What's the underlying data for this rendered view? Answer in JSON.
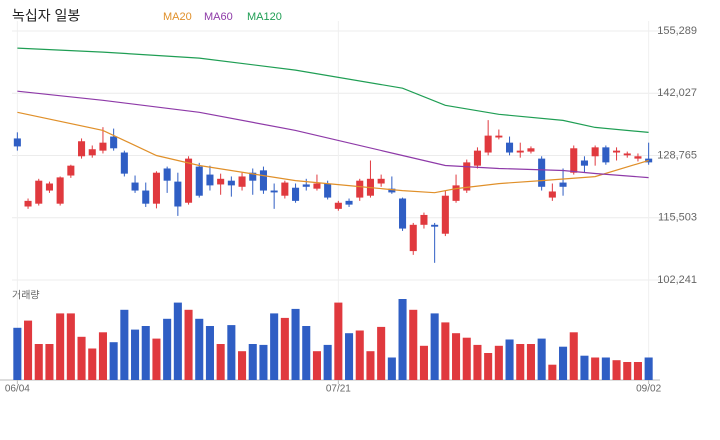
{
  "chart_data": {
    "type": "candlestick",
    "title": "녹십자 일봉",
    "volume_label": "거래량",
    "up_color": "#e0393e",
    "down_color": "#2f5ec4",
    "grid": true,
    "categories": [
      "06/04",
      null,
      null,
      null,
      null,
      null,
      null,
      null,
      null,
      null,
      null,
      null,
      null,
      null,
      null,
      null,
      null,
      null,
      null,
      null,
      null,
      null,
      null,
      null,
      null,
      null,
      null,
      null,
      null,
      null,
      "07/21",
      null,
      null,
      null,
      null,
      null,
      null,
      null,
      null,
      null,
      null,
      null,
      null,
      null,
      null,
      null,
      null,
      null,
      null,
      null,
      null,
      null,
      null,
      null,
      null,
      null,
      null,
      null,
      null,
      "09/02"
    ],
    "open": [
      132400,
      117900,
      118500,
      121300,
      118500,
      124500,
      128600,
      128800,
      129800,
      132800,
      129400,
      123000,
      121300,
      118500,
      126000,
      123200,
      118700,
      126400,
      124700,
      122600,
      123400,
      122100,
      125100,
      125600,
      121300,
      120200,
      121900,
      122600,
      121700,
      122800,
      117400,
      119100,
      119800,
      120200,
      122800,
      121700,
      119600,
      108400,
      114000,
      114000,
      112100,
      119100,
      121300,
      126600,
      129400,
      132600,
      131500,
      129400,
      129600,
      128100,
      119800,
      123000,
      125100,
      127700,
      128600,
      130500,
      129400,
      128800,
      128100,
      128100
    ],
    "high": [
      133700,
      119600,
      123800,
      123200,
      124300,
      126800,
      132400,
      130900,
      134800,
      134500,
      129800,
      124500,
      123000,
      125400,
      126400,
      125100,
      128600,
      127200,
      126600,
      124900,
      124300,
      125100,
      126000,
      126400,
      122800,
      123400,
      122800,
      123800,
      124700,
      123400,
      119100,
      119600,
      123800,
      127700,
      124700,
      124300,
      119800,
      114400,
      116600,
      114400,
      121300,
      124700,
      127900,
      130500,
      136300,
      134300,
      132800,
      131500,
      130700,
      128600,
      122800,
      126000,
      130900,
      128600,
      130900,
      130900,
      130500,
      129600,
      129200,
      131500
    ],
    "low": [
      129800,
      117400,
      118100,
      120800,
      118100,
      124000,
      128100,
      128300,
      129200,
      129800,
      124300,
      120800,
      117800,
      117500,
      120800,
      115900,
      118300,
      119800,
      121300,
      120400,
      120000,
      121300,
      120400,
      120600,
      117400,
      119600,
      118700,
      121300,
      121300,
      119400,
      117000,
      117800,
      119100,
      119800,
      122100,
      120600,
      112700,
      107600,
      113200,
      105900,
      111600,
      118700,
      120800,
      126000,
      128800,
      132200,
      128800,
      128300,
      129200,
      121300,
      119100,
      120200,
      124700,
      125100,
      126600,
      126800,
      127700,
      128300,
      127500,
      126800
    ],
    "close": [
      130700,
      119100,
      123400,
      122800,
      124100,
      126600,
      131800,
      130100,
      131500,
      130300,
      124900,
      121300,
      118500,
      125100,
      123400,
      117900,
      128100,
      120200,
      122400,
      123800,
      122400,
      124300,
      123400,
      121300,
      120900,
      123000,
      119100,
      122100,
      122800,
      119800,
      118700,
      118300,
      123400,
      123800,
      123800,
      120900,
      113200,
      114000,
      116100,
      113600,
      120200,
      122400,
      127300,
      129800,
      133000,
      133000,
      129400,
      129800,
      130300,
      122100,
      121100,
      122100,
      130300,
      126600,
      130500,
      127300,
      129800,
      129200,
      128600,
      127300
    ],
    "volume": [
      58,
      66,
      40,
      40,
      74,
      74,
      48,
      35,
      53,
      42,
      78,
      56,
      60,
      46,
      68,
      86,
      78,
      68,
      60,
      40,
      61,
      32,
      40,
      39,
      74,
      69,
      79,
      60,
      32,
      39,
      86,
      52,
      55,
      32,
      59,
      25,
      90,
      78,
      38,
      74,
      64,
      52,
      47,
      39,
      30,
      38,
      45,
      40,
      40,
      46,
      17,
      37,
      53,
      27,
      25,
      25,
      22,
      20,
      20,
      25
    ],
    "volume_ylim": [
      0,
      100
    ],
    "ylim": [
      102241,
      155289
    ],
    "yticks": [
      {
        "value": 155289,
        "label": "155,289"
      },
      {
        "value": 142027,
        "label": "142,027"
      },
      {
        "value": 128765,
        "label": "128,765"
      },
      {
        "value": 115503,
        "label": "115,503"
      },
      {
        "value": 102241,
        "label": "102,241"
      }
    ],
    "series": [
      {
        "name": "MA20",
        "color": "#e0902a",
        "x": [
          0,
          8,
          13,
          17,
          26,
          31,
          36,
          39,
          41,
          45,
          49,
          54,
          59
        ],
        "values": [
          137960,
          134110,
          128770,
          126630,
          123420,
          122350,
          121280,
          120850,
          121710,
          122780,
          123420,
          124270,
          127700
        ]
      },
      {
        "name": "MA60",
        "color": "#8e3aa8",
        "x": [
          0,
          8,
          17,
          26,
          36,
          40,
          45,
          51,
          54,
          59
        ],
        "values": [
          142460,
          140530,
          137960,
          134110,
          128770,
          126630,
          125990,
          125560,
          124920,
          124060
        ]
      },
      {
        "name": "MA120",
        "color": "#1f9e54",
        "x": [
          0,
          8,
          17,
          26,
          36,
          40,
          45,
          51,
          54,
          59
        ],
        "values": [
          151653,
          150800,
          149510,
          146950,
          143100,
          139460,
          137540,
          136250,
          134760,
          133690
        ]
      }
    ]
  }
}
